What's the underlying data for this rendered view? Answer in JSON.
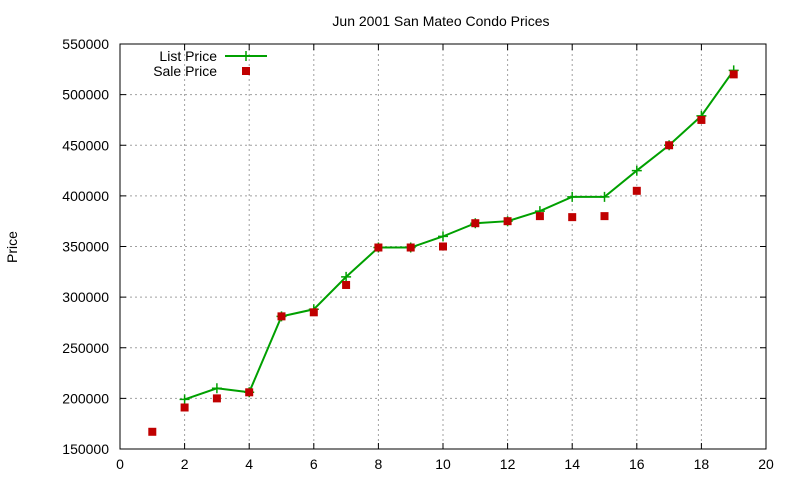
{
  "chart_data": {
    "type": "line",
    "title": "Jun 2001 San Mateo Condo Prices",
    "xlabel": "",
    "ylabel": "Price",
    "xlim": [
      0,
      20
    ],
    "ylim": [
      150000,
      550000
    ],
    "x_ticks": [
      0,
      2,
      4,
      6,
      8,
      10,
      12,
      14,
      16,
      18,
      20
    ],
    "y_ticks": [
      150000,
      200000,
      250000,
      300000,
      350000,
      400000,
      450000,
      500000,
      550000
    ],
    "grid": true,
    "legend_position": "top-left",
    "x": [
      1,
      2,
      3,
      4,
      5,
      6,
      7,
      8,
      9,
      10,
      11,
      12,
      13,
      14,
      15,
      16,
      17,
      18,
      19
    ],
    "series": [
      {
        "name": "List Price",
        "style": "line-with-plus",
        "color": "#00a000",
        "values": [
          null,
          199000,
          210000,
          206000,
          281000,
          288000,
          320000,
          349000,
          349000,
          360000,
          373000,
          375000,
          385000,
          399000,
          399000,
          425000,
          450000,
          479000,
          524000
        ]
      },
      {
        "name": "Sale Price",
        "style": "square-markers",
        "color": "#c00000",
        "values": [
          167000,
          191000,
          200000,
          206000,
          281000,
          285000,
          312000,
          349000,
          349000,
          350000,
          373000,
          375000,
          380000,
          379000,
          380000,
          405000,
          450000,
          475000,
          520000
        ]
      }
    ]
  }
}
